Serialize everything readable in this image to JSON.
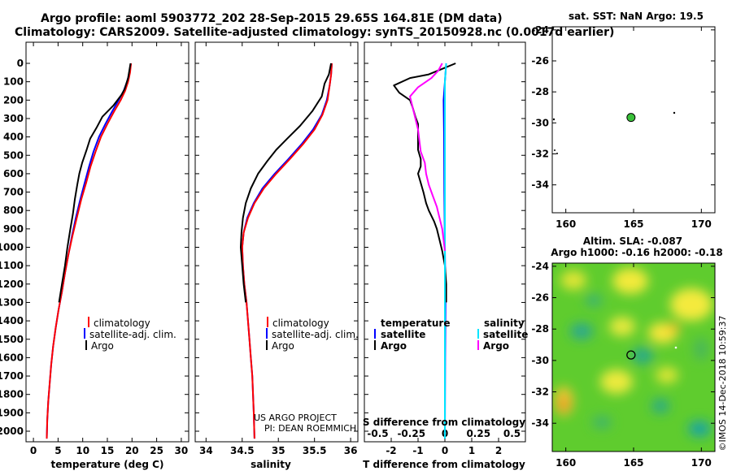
{
  "header": {
    "line1": "Argo profile: aoml 5903772_202 28-Sep-2015 29.65S 164.81E (DM data)",
    "line2": "Climatology: CARS2009. Satellite-adjusted climatology: synTS_20150928.nc (0.0017d earlier)"
  },
  "colors": {
    "climatology": "#ff0000",
    "satellite": "#0000ff",
    "argo": "#000000",
    "sat_salinity": "#00e5ff",
    "argo_salinity": "#ff00ff"
  },
  "chart_data": [
    {
      "type": "line",
      "name": "temperature-profile",
      "xlabel": "temperature (deg C)",
      "ylim": [
        2080,
        0
      ],
      "xlim": [
        -1.5,
        31.5
      ],
      "xticks": [
        "0",
        "5",
        "10",
        "15",
        "20",
        "25",
        "30"
      ],
      "yticks": [
        "0",
        "100",
        "200",
        "300",
        "400",
        "500",
        "600",
        "700",
        "800",
        "900",
        "1000",
        "1100",
        "1200",
        "1300",
        "1400",
        "1500",
        "1600",
        "1700",
        "1800",
        "1900",
        "2000"
      ],
      "legend": [
        "climatology",
        "satellite-adj. clim.",
        "Argo"
      ],
      "series": [
        {
          "name": "satellite-adj. clim.",
          "color": "blue",
          "points": [
            [
              19.8,
              0
            ],
            [
              19.5,
              50
            ],
            [
              19.0,
              100
            ],
            [
              18.3,
              150
            ],
            [
              17.3,
              200
            ],
            [
              16.0,
              260
            ],
            [
              14.6,
              330
            ],
            [
              13.3,
              400
            ],
            [
              12.2,
              480
            ],
            [
              11.3,
              560
            ],
            [
              10.4,
              650
            ],
            [
              9.5,
              740
            ],
            [
              8.6,
              840
            ],
            [
              7.8,
              940
            ],
            [
              7.1,
              1040
            ],
            [
              6.4,
              1140
            ],
            [
              5.8,
              1240
            ],
            [
              5.1,
              1340
            ],
            [
              4.5,
              1440
            ],
            [
              4.0,
              1540
            ],
            [
              3.6,
              1640
            ],
            [
              3.3,
              1740
            ],
            [
              3.0,
              1840
            ],
            [
              2.8,
              1940
            ],
            [
              2.7,
              2040
            ]
          ]
        },
        {
          "name": "climatology",
          "color": "red",
          "points": [
            [
              19.8,
              0
            ],
            [
              19.6,
              50
            ],
            [
              19.2,
              100
            ],
            [
              18.6,
              150
            ],
            [
              17.7,
              200
            ],
            [
              16.4,
              260
            ],
            [
              15.0,
              330
            ],
            [
              13.7,
              400
            ],
            [
              12.6,
              480
            ],
            [
              11.6,
              560
            ],
            [
              10.7,
              650
            ],
            [
              9.7,
              740
            ],
            [
              8.8,
              840
            ],
            [
              7.9,
              940
            ],
            [
              7.1,
              1040
            ],
            [
              6.4,
              1140
            ],
            [
              5.8,
              1240
            ],
            [
              5.1,
              1340
            ],
            [
              4.5,
              1440
            ],
            [
              4.0,
              1540
            ],
            [
              3.6,
              1640
            ],
            [
              3.3,
              1740
            ],
            [
              3.0,
              1840
            ],
            [
              2.8,
              1940
            ],
            [
              2.7,
              2040
            ]
          ]
        },
        {
          "name": "Argo",
          "color": "black",
          "points": [
            [
              19.7,
              0
            ],
            [
              19.2,
              80
            ],
            [
              18.5,
              140
            ],
            [
              17.9,
              170
            ],
            [
              16.2,
              230
            ],
            [
              14.0,
              290
            ],
            [
              12.8,
              350
            ],
            [
              11.5,
              410
            ],
            [
              10.8,
              470
            ],
            [
              9.9,
              540
            ],
            [
              9.3,
              600
            ],
            [
              8.9,
              660
            ],
            [
              8.4,
              740
            ],
            [
              8.0,
              820
            ],
            [
              7.5,
              900
            ],
            [
              6.9,
              1000
            ],
            [
              6.4,
              1100
            ],
            [
              5.8,
              1200
            ],
            [
              5.2,
              1300
            ]
          ]
        }
      ]
    },
    {
      "type": "line",
      "name": "salinity-profile",
      "xlabel": "salinity",
      "ylim": [
        2080,
        0
      ],
      "xlim": [
        33.85,
        36.1
      ],
      "xticks": [
        "34",
        "34.5",
        "35",
        "35.5",
        "36"
      ],
      "legend": [
        "climatology",
        "satellite-adj. clim.",
        "Argo"
      ],
      "credit": [
        "US ARGO PROJECT",
        "PI: DEAN ROEMMICH"
      ],
      "series": [
        {
          "name": "satellite-adj. clim.",
          "color": "blue",
          "points": [
            [
              35.74,
              0
            ],
            [
              35.73,
              60
            ],
            [
              35.71,
              120
            ],
            [
              35.67,
              200
            ],
            [
              35.6,
              280
            ],
            [
              35.48,
              360
            ],
            [
              35.32,
              440
            ],
            [
              35.14,
              520
            ],
            [
              34.95,
              600
            ],
            [
              34.78,
              680
            ],
            [
              34.66,
              760
            ],
            [
              34.57,
              840
            ],
            [
              34.52,
              920
            ],
            [
              34.5,
              1000
            ],
            [
              34.51,
              1100
            ],
            [
              34.53,
              1200
            ],
            [
              34.56,
              1300
            ],
            [
              34.58,
              1400
            ],
            [
              34.6,
              1500
            ],
            [
              34.62,
              1600
            ],
            [
              34.64,
              1700
            ],
            [
              34.65,
              1800
            ],
            [
              34.66,
              1900
            ],
            [
              34.67,
              2040
            ]
          ]
        },
        {
          "name": "climatology",
          "color": "red",
          "points": [
            [
              35.74,
              0
            ],
            [
              35.73,
              60
            ],
            [
              35.71,
              120
            ],
            [
              35.68,
              200
            ],
            [
              35.61,
              280
            ],
            [
              35.5,
              360
            ],
            [
              35.34,
              440
            ],
            [
              35.16,
              520
            ],
            [
              34.97,
              600
            ],
            [
              34.8,
              680
            ],
            [
              34.67,
              760
            ],
            [
              34.58,
              840
            ],
            [
              34.52,
              920
            ],
            [
              34.5,
              1000
            ],
            [
              34.51,
              1100
            ],
            [
              34.53,
              1200
            ],
            [
              34.56,
              1300
            ],
            [
              34.58,
              1400
            ],
            [
              34.6,
              1500
            ],
            [
              34.62,
              1600
            ],
            [
              34.64,
              1700
            ],
            [
              34.65,
              1800
            ],
            [
              34.66,
              1900
            ],
            [
              34.67,
              2040
            ]
          ]
        },
        {
          "name": "Argo",
          "color": "black",
          "points": [
            [
              35.73,
              0
            ],
            [
              35.7,
              60
            ],
            [
              35.64,
              110
            ],
            [
              35.6,
              180
            ],
            [
              35.47,
              260
            ],
            [
              35.3,
              340
            ],
            [
              35.12,
              410
            ],
            [
              34.97,
              470
            ],
            [
              34.85,
              530
            ],
            [
              34.72,
              600
            ],
            [
              34.62,
              680
            ],
            [
              34.55,
              760
            ],
            [
              34.51,
              840
            ],
            [
              34.49,
              920
            ],
            [
              34.48,
              1000
            ],
            [
              34.5,
              1100
            ],
            [
              34.52,
              1200
            ],
            [
              34.55,
              1300
            ]
          ]
        }
      ]
    },
    {
      "type": "line",
      "name": "difference-profile",
      "xlabel": "T difference from climatology",
      "x2label": "S difference from climatology",
      "ylim": [
        2080,
        0
      ],
      "xlim": [
        -3.0,
        3.0
      ],
      "xticks": [
        "-2",
        "-1",
        "0",
        "1",
        "2"
      ],
      "x2ticks": [
        "-0.5",
        "-0.25",
        "0",
        "0.25",
        "0.5"
      ],
      "legend_temperature": {
        "title": "temperature",
        "items": [
          "satellite",
          "Argo"
        ]
      },
      "legend_salinity": {
        "title": "salinity",
        "items": [
          "satellite",
          "Argo"
        ]
      },
      "series": [
        {
          "name": "temperature satellite",
          "color": "blue",
          "points": [
            [
              0.05,
              0
            ],
            [
              0.0,
              100
            ],
            [
              -0.05,
              200
            ],
            [
              -0.03,
              400
            ],
            [
              -0.02,
              700
            ],
            [
              0.0,
              1000
            ],
            [
              0.02,
              1300
            ],
            [
              0.01,
              1600
            ],
            [
              0.0,
              2040
            ]
          ]
        },
        {
          "name": "temperature Argo",
          "color": "black",
          "points": [
            [
              0.4,
              0
            ],
            [
              -0.1,
              30
            ],
            [
              -0.6,
              60
            ],
            [
              -1.3,
              80
            ],
            [
              -1.9,
              120
            ],
            [
              -1.7,
              160
            ],
            [
              -1.3,
              200
            ],
            [
              -1.2,
              240
            ],
            [
              -1.1,
              290
            ],
            [
              -1.0,
              330
            ],
            [
              -1.0,
              380
            ],
            [
              -1.0,
              430
            ],
            [
              -1.0,
              470
            ],
            [
              -0.9,
              520
            ],
            [
              -0.9,
              560
            ],
            [
              -1.0,
              600
            ],
            [
              -0.9,
              650
            ],
            [
              -0.8,
              700
            ],
            [
              -0.7,
              760
            ],
            [
              -0.6,
              800
            ],
            [
              -0.4,
              860
            ],
            [
              -0.3,
              900
            ],
            [
              -0.2,
              960
            ],
            [
              -0.1,
              1020
            ],
            [
              0.0,
              1100
            ],
            [
              0.05,
              1200
            ],
            [
              0.05,
              1300
            ]
          ]
        },
        {
          "name": "salinity satellite",
          "color": "cyan",
          "points": [
            [
              0.01,
              0
            ],
            [
              0.0,
              100
            ],
            [
              0.0,
              300
            ],
            [
              0.0,
              600
            ],
            [
              0.0,
              1000
            ],
            [
              0.0,
              1500
            ],
            [
              0.0,
              2040
            ]
          ]
        },
        {
          "name": "salinity Argo",
          "color": "magenta",
          "points": [
            [
              -0.02,
              0
            ],
            [
              -0.05,
              40
            ],
            [
              -0.1,
              80
            ],
            [
              -0.2,
              130
            ],
            [
              -0.26,
              180
            ],
            [
              -0.24,
              240
            ],
            [
              -0.22,
              300
            ],
            [
              -0.2,
              360
            ],
            [
              -0.19,
              420
            ],
            [
              -0.18,
              480
            ],
            [
              -0.15,
              540
            ],
            [
              -0.14,
              600
            ],
            [
              -0.12,
              660
            ],
            [
              -0.09,
              720
            ],
            [
              -0.06,
              780
            ],
            [
              -0.04,
              840
            ],
            [
              -0.02,
              900
            ],
            [
              -0.01,
              960
            ],
            [
              0.0,
              1020
            ]
          ]
        }
      ]
    },
    {
      "type": "scatter",
      "name": "sst-map",
      "title": "sat. SST: NaN Argo: 19.5",
      "xlim": [
        159,
        171
      ],
      "ylim": [
        -35.8,
        -23.8
      ],
      "xticks": [
        "160",
        "165",
        "170"
      ],
      "yticks": [
        "-24",
        "-26",
        "-28",
        "-30",
        "-32",
        "-34"
      ],
      "argo_position": [
        164.81,
        -29.65
      ]
    },
    {
      "type": "heatmap",
      "name": "sla-map",
      "title1": "Altim. SLA: -0.087",
      "title2": "Argo h1000: -0.16 h2000: -0.18",
      "xlim": [
        159,
        171
      ],
      "ylim": [
        -35.8,
        -23.8
      ],
      "xticks": [
        "160",
        "165",
        "170"
      ],
      "yticks": [
        "-24",
        "-26",
        "-28",
        "-30",
        "-32",
        "-34"
      ],
      "argo_position": [
        164.81,
        -29.65
      ]
    }
  ],
  "footer": {
    "stamp": "©IMOS 14-Dec-2018 10:59:37"
  }
}
